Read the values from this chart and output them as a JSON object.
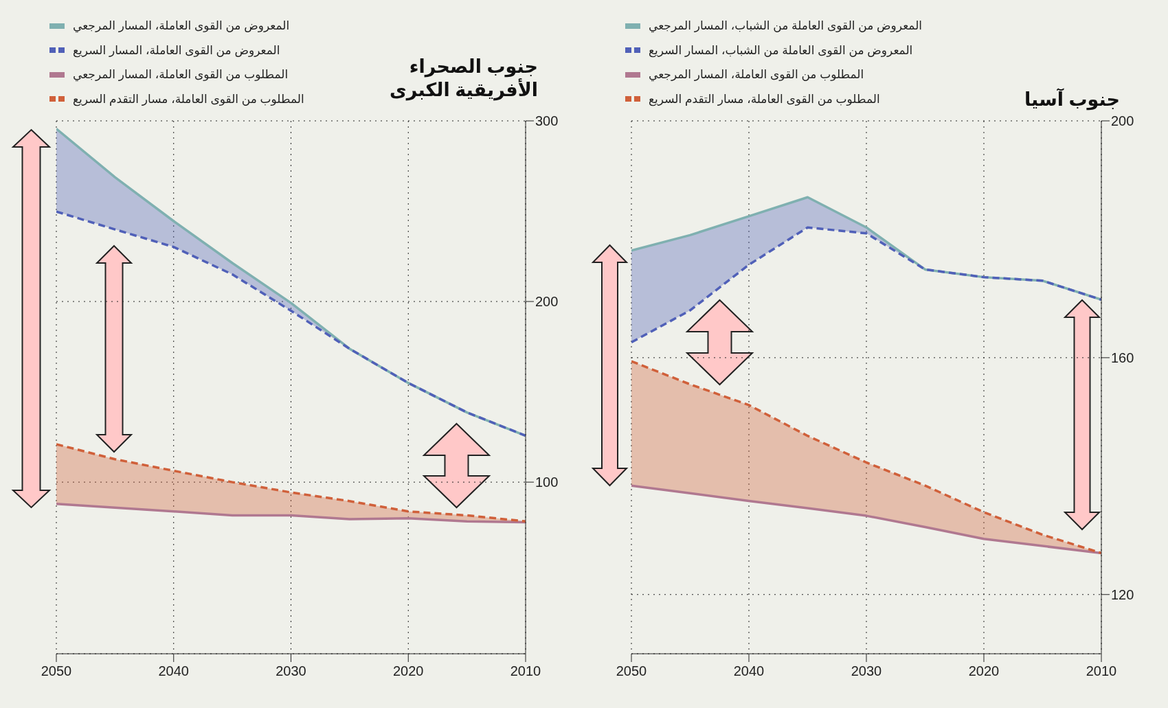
{
  "chart_data": [
    {
      "type": "line",
      "title": "جنوب الصحراء الأفريقية الكبرى",
      "x": [
        2050,
        2045,
        2040,
        2035,
        2030,
        2025,
        2020,
        2015,
        2010
      ],
      "xlim": [
        2050,
        2010
      ],
      "xticks": [
        2050,
        2040,
        2030,
        2020,
        2010
      ],
      "ylim": [
        5,
        300
      ],
      "yticks": [
        100,
        200,
        300
      ],
      "grid": true,
      "legend": "top left",
      "marker": "none",
      "series": [
        {
          "name": "المعروض من القوى العاملة، المسار المرجعي",
          "color": "#7fb0b0",
          "line_style": "solid",
          "values": [
            295.6,
            268.8,
            244.5,
            221.3,
            199.2,
            173.8,
            154.9,
            138.6,
            125.7
          ]
        },
        {
          "name": "المعروض من القوى العاملة، المسار السريع",
          "color": "#5060b8",
          "line_style": "dashed",
          "values": [
            249.8,
            239.9,
            230.2,
            215,
            194.9,
            173.8,
            154.9,
            138.6,
            125.7
          ],
          "lower": [
            249.8,
            239.9,
            230.2,
            215,
            194.9,
            173.8,
            154.9,
            138.6,
            125.7
          ],
          "upper": [
            295.6,
            268.8,
            244.5,
            221.3,
            199.2,
            173.8,
            154.9,
            138.6,
            125.7
          ]
        },
        {
          "name": "المطلوب من القوى العاملة، المسار المرجعي",
          "color": "#b07890",
          "line_style": "solid",
          "values": [
            88,
            85.9,
            83.8,
            81.6,
            81.6,
            79.5,
            80,
            78.3,
            77.8
          ]
        },
        {
          "name": "المطلوب من القوى العاملة، مسار التقدم السريع",
          "color": "#d0603a",
          "line_style": "dashed",
          "values": [
            121,
            112.7,
            106.3,
            100,
            94.3,
            89.5,
            83.8,
            81.6,
            78.3
          ],
          "lower": [
            88,
            85.9,
            83.8,
            81.6,
            81.6,
            79.5,
            80,
            78.3,
            77.8
          ],
          "upper": [
            121,
            112.7,
            106.3,
            100,
            94.3,
            89.5,
            83.8,
            81.6,
            78.3
          ]
        }
      ]
    },
    {
      "type": "line",
      "title": "جنوب آسيا",
      "x": [
        2050,
        2045,
        2040,
        2035,
        2030,
        2025,
        2020,
        2015,
        2010
      ],
      "xlim": [
        2050,
        2010
      ],
      "xticks": [
        2050,
        2040,
        2030,
        2020,
        2010
      ],
      "ylim": [
        110,
        200
      ],
      "yticks": [
        120,
        160,
        200
      ],
      "grid": true,
      "legend": "top left",
      "marker": "none",
      "series": [
        {
          "name": "المعروض من القوى العاملة من الشباب، المسار المرجعي",
          "color": "#7fb0b0",
          "line_style": "solid",
          "values": [
            178.1,
            180.7,
            183.9,
            187.1,
            182,
            174.9,
            173.6,
            173,
            169.8
          ]
        },
        {
          "name": "المعروض من القوى العاملة من الشباب، المسار السريع",
          "color": "#5060b8",
          "line_style": "dashed",
          "values": [
            162.6,
            168,
            175.7,
            182,
            181,
            174.9,
            173.6,
            173,
            169.8
          ],
          "lower": [
            162.6,
            168,
            175.7,
            182,
            181,
            174.9,
            173.6,
            173,
            169.8
          ],
          "upper": [
            178.1,
            180.7,
            183.9,
            187.1,
            182,
            174.9,
            173.6,
            173,
            169.8
          ]
        },
        {
          "name": "المطلوب من القوى العاملة، المسار المرجعي",
          "color": "#b07890",
          "line_style": "solid",
          "values": [
            138.4,
            137.1,
            135.8,
            134.6,
            133.3,
            131.4,
            129.4,
            128.2,
            127
          ]
        },
        {
          "name": "المطلوب من القوى العاملة، مسار التقدم السريع",
          "color": "#d0603a",
          "line_style": "dashed",
          "values": [
            159.4,
            155.5,
            152,
            146.8,
            142.3,
            138.4,
            133.9,
            130.1,
            127
          ],
          "lower": [
            138.4,
            137.1,
            135.8,
            134.6,
            133.3,
            131.4,
            129.4,
            128.2,
            127
          ],
          "upper": [
            159.4,
            155.5,
            152,
            146.8,
            142.3,
            138.4,
            133.9,
            130.1,
            127
          ]
        }
      ]
    }
  ]
}
